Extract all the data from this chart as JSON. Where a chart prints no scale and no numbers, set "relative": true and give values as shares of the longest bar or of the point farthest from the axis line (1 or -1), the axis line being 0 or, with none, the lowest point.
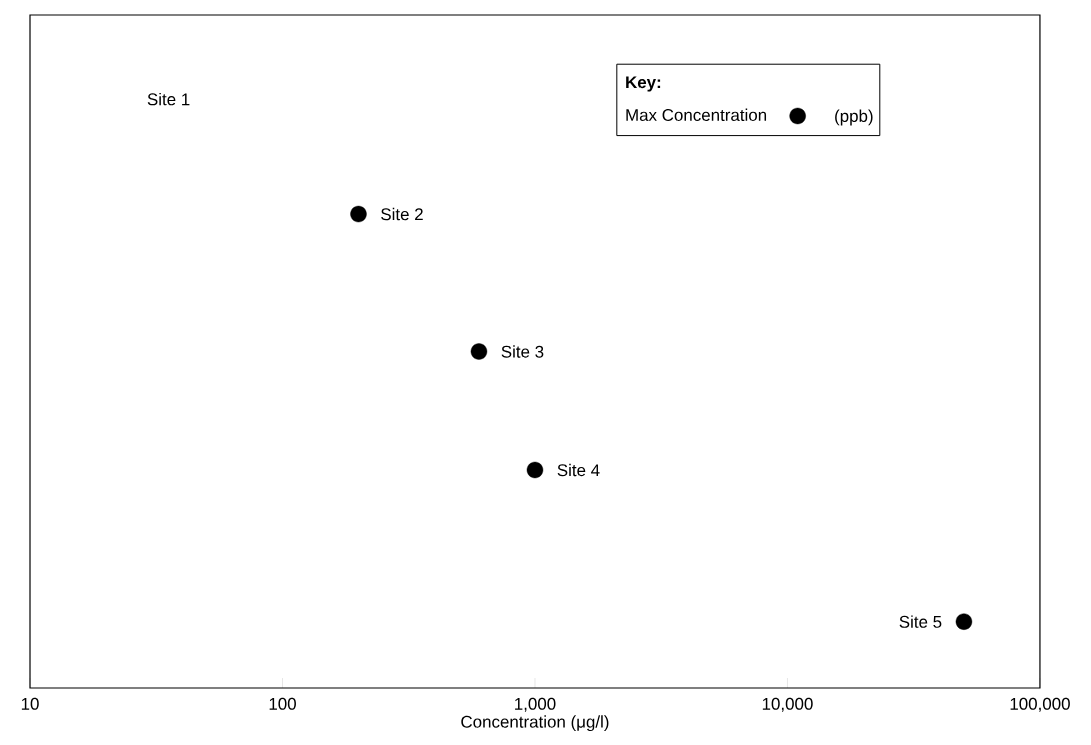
{
  "chart_data": {
    "type": "scatter",
    "log": "x",
    "relative": true,
    "x": [
      200,
      600,
      1000,
      50000
    ],
    "series": [
      {
        "name": "Max Concentration",
        "color": "#000000",
        "values": [
          1,
          0.71,
          0.46,
          0.14
        ]
      }
    ],
    "marker": "circle",
    "xlim": [
      10,
      100000
    ],
    "xticks": [
      {
        "value": 10,
        "label": "10"
      },
      {
        "value": 100,
        "label": "100"
      },
      {
        "value": 1000,
        "label": "1,000"
      },
      {
        "value": 10000,
        "label": "10,000"
      },
      {
        "value": 100000,
        "label": "100,000"
      }
    ],
    "xlabel": "Concentration (μg/l)",
    "legend": "top right",
    "legend_title": "Key:",
    "annotations": [
      "(ppb)",
      "Site 1",
      {
        "text": "Site 2",
        "x": 200,
        "y": 1
      },
      {
        "text": "Site 3",
        "x": 600,
        "y": 0.71
      },
      {
        "text": "Site 4",
        "x": 1000,
        "y": 0.46
      },
      {
        "text": "Site 5",
        "x": 50000,
        "y": 0.14
      }
    ]
  }
}
